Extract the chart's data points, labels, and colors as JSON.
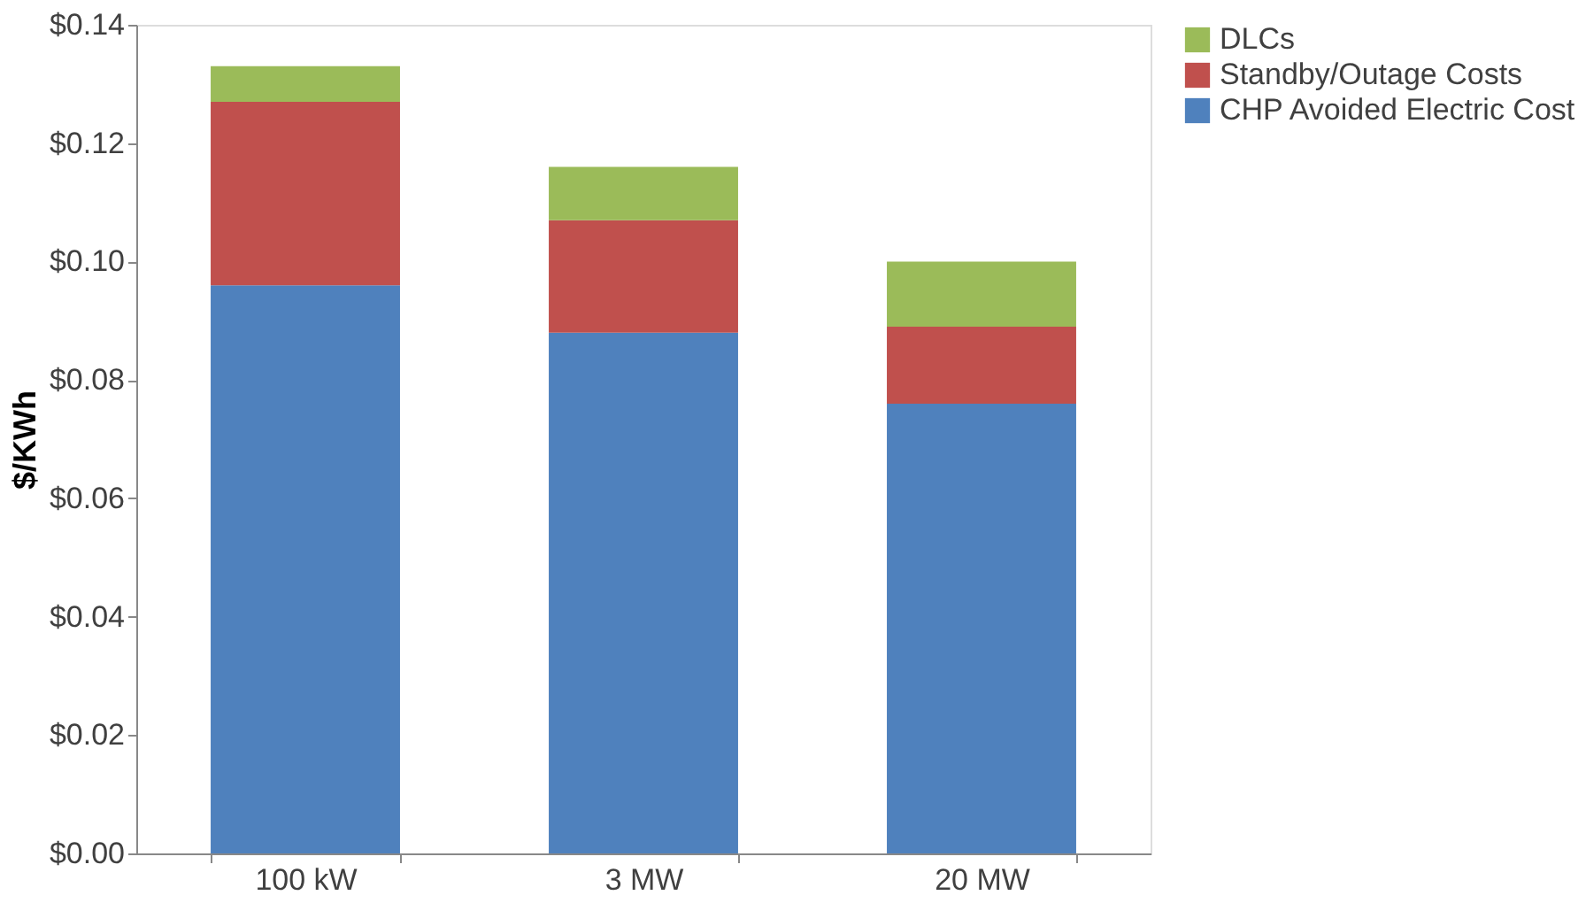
{
  "chart_data": {
    "type": "bar",
    "stacked": true,
    "ylabel": "$/KWh",
    "categories": [
      "100 kW",
      "3 MW",
      "20 MW"
    ],
    "series": [
      {
        "name": "CHP Avoided Electric Cost",
        "color": "#4f81bd",
        "values": [
          0.096,
          0.088,
          0.076
        ]
      },
      {
        "name": "Standby/Outage Costs",
        "color": "#c0504d",
        "values": [
          0.031,
          0.019,
          0.013
        ]
      },
      {
        "name": "DLCs",
        "color": "#9bbb59",
        "values": [
          0.006,
          0.009,
          0.011
        ]
      }
    ],
    "ylim": [
      0,
      0.14
    ],
    "yticks": [
      {
        "value": 0,
        "label": "$0.00"
      },
      {
        "value": 0.02,
        "label": "$0.02"
      },
      {
        "value": 0.04,
        "label": "$0.04"
      },
      {
        "value": 0.06,
        "label": "$0.06"
      },
      {
        "value": 0.08,
        "label": "$0.08"
      },
      {
        "value": 0.1,
        "label": "$0.10"
      },
      {
        "value": 0.12,
        "label": "$0.12"
      },
      {
        "value": 0.14,
        "label": "$0.14"
      }
    ],
    "grid": false,
    "legend": "right"
  }
}
